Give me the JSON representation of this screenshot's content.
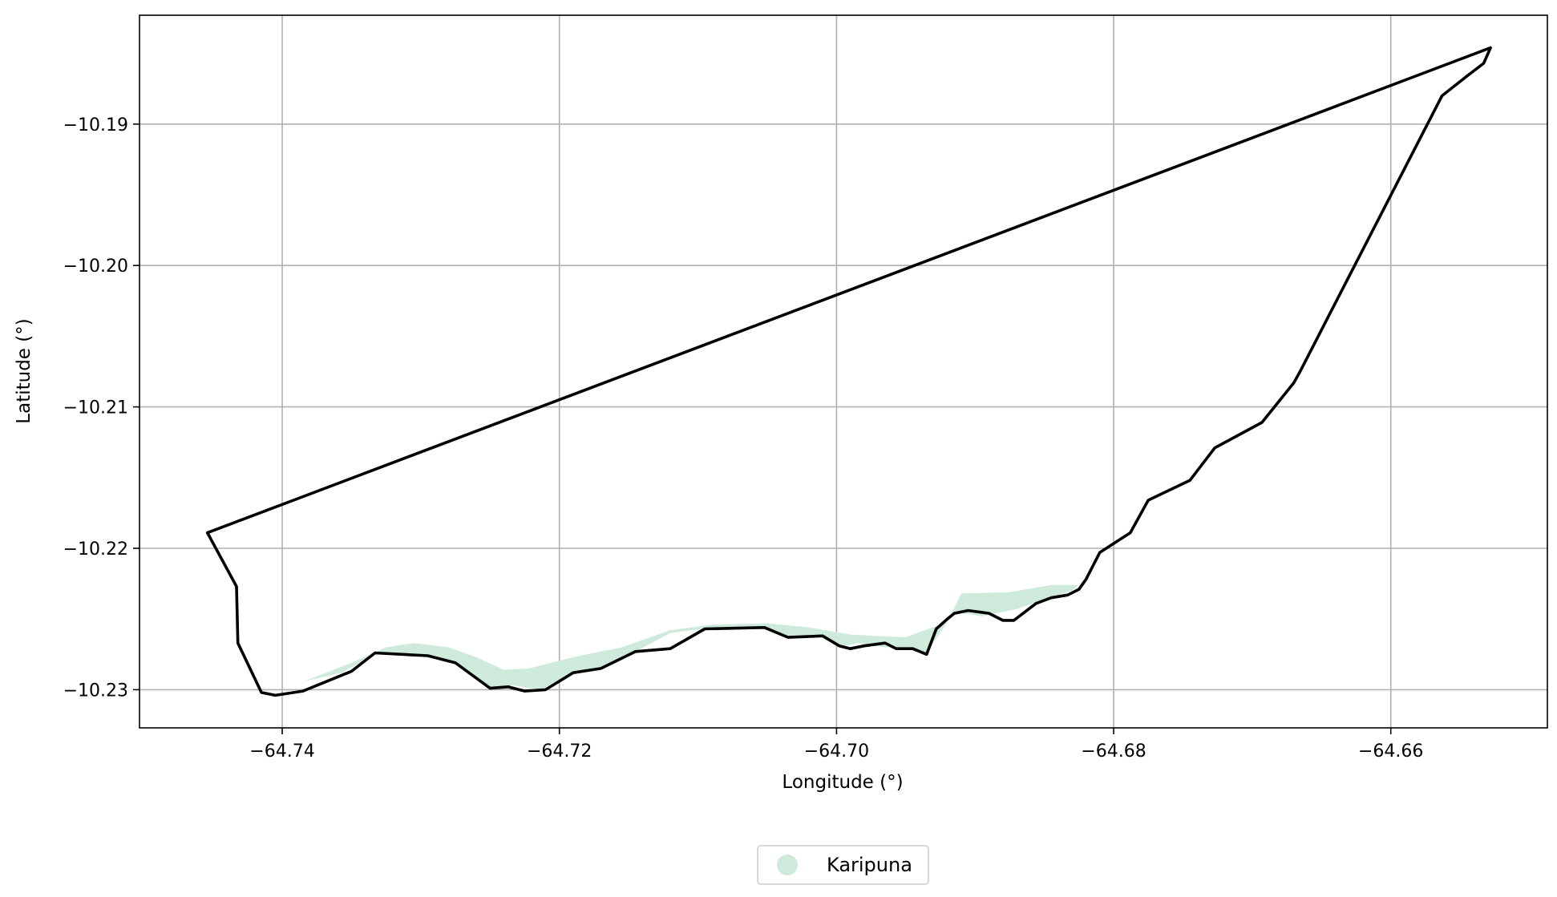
{
  "chart_data": {
    "type": "map",
    "title": "",
    "xlabel": "Longitude (°)",
    "ylabel": "Latitude (°)",
    "xlim": [
      -64.7503,
      -64.6487
    ],
    "ylim": [
      -10.2327,
      -10.1823
    ],
    "grid": true,
    "x_ticks": [
      {
        "value": -64.74,
        "label": "−64.74"
      },
      {
        "value": -64.72,
        "label": "−64.72"
      },
      {
        "value": -64.7,
        "label": "−64.70"
      },
      {
        "value": -64.68,
        "label": "−64.68"
      },
      {
        "value": -64.66,
        "label": "−64.66"
      }
    ],
    "y_ticks": [
      {
        "value": -10.19,
        "label": "−10.19"
      },
      {
        "value": -10.2,
        "label": "−10.20"
      },
      {
        "value": -10.21,
        "label": "−10.21"
      },
      {
        "value": -10.22,
        "label": "−10.22"
      },
      {
        "value": -10.23,
        "label": "−10.23"
      }
    ],
    "legend": {
      "placement": "bottom-center",
      "entries": [
        {
          "label": "Karipuna",
          "color": "#cdeadb"
        }
      ]
    },
    "territory": {
      "name": "Karipuna",
      "fill_color": "#cdeadb",
      "points": [
        [
          -64.7384,
          -10.2294
        ],
        [
          -64.735,
          -10.2281
        ],
        [
          -64.7325,
          -10.227
        ],
        [
          -64.7305,
          -10.2267
        ],
        [
          -64.728,
          -10.227
        ],
        [
          -64.726,
          -10.2277
        ],
        [
          -64.724,
          -10.2286
        ],
        [
          -64.7222,
          -10.2285
        ],
        [
          -64.719,
          -10.2277
        ],
        [
          -64.7155,
          -10.227
        ],
        [
          -64.712,
          -10.2258
        ],
        [
          -64.709,
          -10.2254
        ],
        [
          -64.705,
          -10.2253
        ],
        [
          -64.702,
          -10.2256
        ],
        [
          -64.699,
          -10.2261
        ],
        [
          -64.695,
          -10.2263
        ],
        [
          -64.692,
          -10.2252
        ],
        [
          -64.691,
          -10.2232
        ],
        [
          -64.6875,
          -10.2231
        ],
        [
          -64.6845,
          -10.2226
        ],
        [
          -64.6825,
          -10.2226
        ],
        [
          -64.681,
          -10.2212
        ],
        [
          -64.683,
          -10.223
        ],
        [
          -64.685,
          -10.2236
        ],
        [
          -64.687,
          -10.2243
        ],
        [
          -64.6895,
          -10.2248
        ],
        [
          -64.6915,
          -10.2245
        ],
        [
          -64.6935,
          -10.2274
        ],
        [
          -64.6945,
          -10.227
        ],
        [
          -64.6965,
          -10.227
        ],
        [
          -64.6985,
          -10.2267
        ],
        [
          -64.6998,
          -10.227
        ],
        [
          -64.701,
          -10.2262
        ],
        [
          -64.7033,
          -10.2263
        ],
        [
          -64.7052,
          -10.2256
        ],
        [
          -64.7098,
          -10.2257
        ],
        [
          -64.712,
          -10.226
        ],
        [
          -64.7145,
          -10.2273
        ],
        [
          -64.717,
          -10.2284
        ],
        [
          -64.7195,
          -10.229
        ],
        [
          -64.7213,
          -10.23
        ],
        [
          -64.7234,
          -10.2297
        ],
        [
          -64.7252,
          -10.2299
        ],
        [
          -64.7275,
          -10.2281
        ],
        [
          -64.7295,
          -10.2276
        ],
        [
          -64.7333,
          -10.2275
        ],
        [
          -64.7357,
          -10.2288
        ]
      ]
    },
    "boundary": {
      "color": "#000000",
      "points": [
        [
          -64.7454,
          -10.2189
        ],
        [
          -64.6528,
          -10.1846
        ],
        [
          -64.6533,
          -10.1857
        ],
        [
          -64.6545,
          -10.1866
        ],
        [
          -64.6563,
          -10.188
        ],
        [
          -64.6666,
          -10.2076
        ],
        [
          -64.667,
          -10.2083
        ],
        [
          -64.6693,
          -10.2111
        ],
        [
          -64.6727,
          -10.2129
        ],
        [
          -64.6745,
          -10.2152
        ],
        [
          -64.6775,
          -10.2166
        ],
        [
          -64.6788,
          -10.2189
        ],
        [
          -64.681,
          -10.2203
        ],
        [
          -64.682,
          -10.2222
        ],
        [
          -64.6825,
          -10.2229
        ],
        [
          -64.6833,
          -10.2233
        ],
        [
          -64.6845,
          -10.2235
        ],
        [
          -64.6856,
          -10.2239
        ],
        [
          -64.6872,
          -10.2251
        ],
        [
          -64.688,
          -10.2251
        ],
        [
          -64.689,
          -10.2246
        ],
        [
          -64.6905,
          -10.2244
        ],
        [
          -64.6915,
          -10.2246
        ],
        [
          -64.692,
          -10.225
        ],
        [
          -64.6928,
          -10.2257
        ],
        [
          -64.6935,
          -10.2275
        ],
        [
          -64.6945,
          -10.2271
        ],
        [
          -64.6957,
          -10.2271
        ],
        [
          -64.6965,
          -10.2267
        ],
        [
          -64.698,
          -10.2269
        ],
        [
          -64.699,
          -10.2271
        ],
        [
          -64.6998,
          -10.2269
        ],
        [
          -64.701,
          -10.2262
        ],
        [
          -64.7035,
          -10.2263
        ],
        [
          -64.7052,
          -10.2256
        ],
        [
          -64.7095,
          -10.2257
        ],
        [
          -64.712,
          -10.2271
        ],
        [
          -64.7145,
          -10.2273
        ],
        [
          -64.717,
          -10.2285
        ],
        [
          -64.719,
          -10.2288
        ],
        [
          -64.721,
          -10.23
        ],
        [
          -64.7225,
          -10.2301
        ],
        [
          -64.7237,
          -10.2298
        ],
        [
          -64.725,
          -10.2299
        ],
        [
          -64.7275,
          -10.2281
        ],
        [
          -64.7295,
          -10.2276
        ],
        [
          -64.7333,
          -10.2274
        ],
        [
          -64.735,
          -10.2287
        ],
        [
          -64.7385,
          -10.2301
        ],
        [
          -64.7405,
          -10.2304
        ],
        [
          -64.7415,
          -10.2302
        ],
        [
          -64.7432,
          -10.2267
        ],
        [
          -64.7433,
          -10.2227
        ],
        [
          -64.7454,
          -10.2189
        ]
      ]
    }
  }
}
